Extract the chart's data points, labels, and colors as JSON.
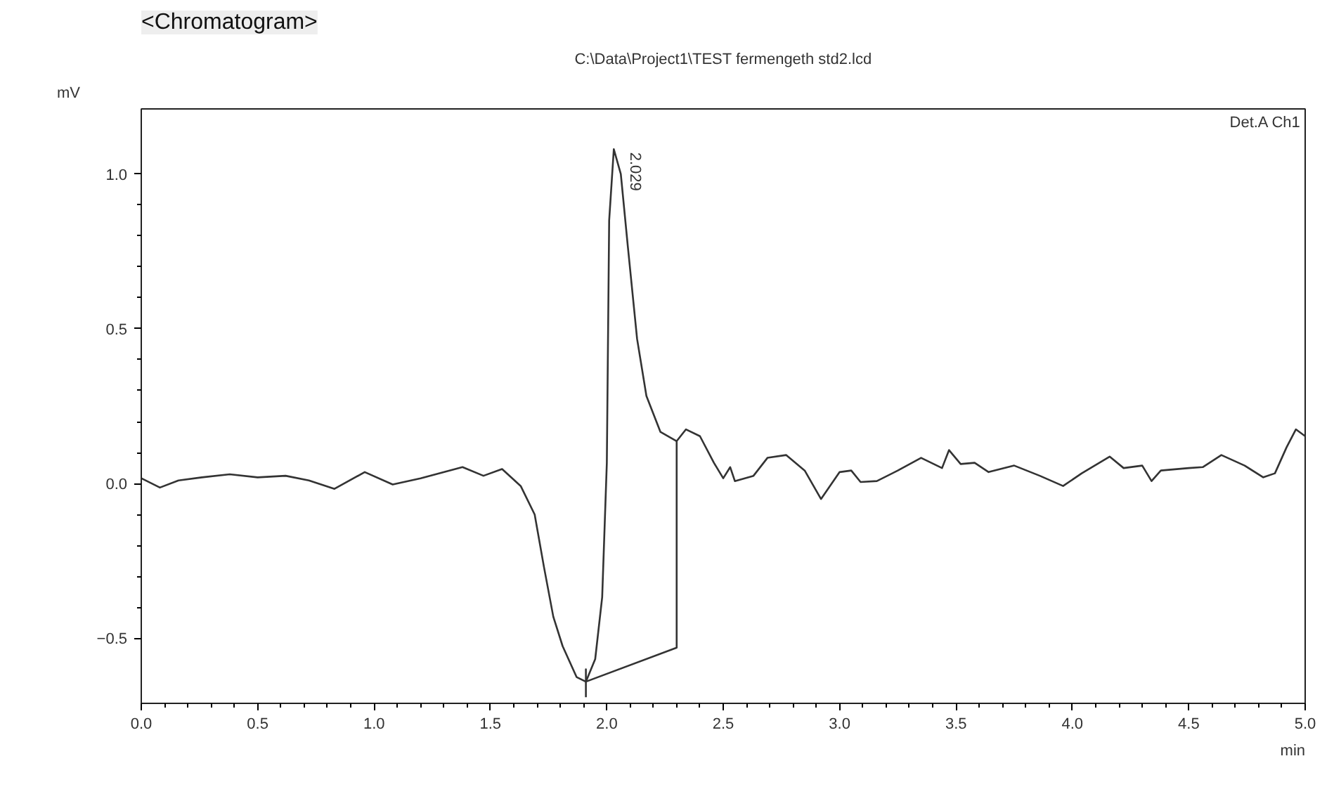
{
  "chart_data": {
    "type": "line",
    "title": "<Chromatogram>",
    "subtitle": "C:\\Data\\Project1\\TEST fermengeth std2.lcd",
    "xlabel": "min",
    "ylabel": "mV",
    "annotations": [
      "Det.A Ch1",
      {
        "text": "2.029",
        "x": 2.029,
        "y": 1.07
      }
    ],
    "xlim": [
      0,
      5.0
    ],
    "xticks": [
      {
        "value": 0,
        "label": "0.0"
      },
      0.5,
      {
        "value": 1,
        "label": "1.0"
      },
      1.5,
      {
        "value": 2,
        "label": "2.0"
      },
      2.5,
      {
        "value": 3,
        "label": "3.0"
      },
      3.5,
      {
        "value": 4,
        "label": "4.0"
      },
      4.5,
      {
        "value": 5,
        "label": "5.0"
      }
    ],
    "ylim": [
      -0.71,
      1.21
    ],
    "yticks": [
      -0.5,
      {
        "value": 0,
        "label": "0.0"
      },
      0.5,
      {
        "value": 1,
        "label": "1.0"
      }
    ],
    "series": [
      {
        "color": "#333333",
        "x": [
          0,
          0.08,
          0.16,
          0.26,
          0.38,
          0.5,
          0.62,
          0.72,
          0.83,
          0.96,
          1.08,
          1.2,
          1.38,
          1.47,
          1.55,
          1.63,
          1.69,
          1.73,
          1.77,
          1.81,
          1.87,
          1.91,
          1.95,
          1.98,
          2.0,
          2.01,
          2.03,
          2.06,
          2.09,
          2.13,
          2.17,
          2.23,
          2.3,
          2.34,
          2.4,
          2.46,
          2.5,
          2.53,
          2.55,
          2.63,
          2.69,
          2.77,
          2.85,
          2.92,
          3.0,
          3.05,
          3.09,
          3.16,
          3.25,
          3.35,
          3.44,
          3.47,
          3.52,
          3.58,
          3.64,
          3.75,
          3.86,
          3.96,
          4.04,
          4.16,
          4.22,
          4.3,
          4.34,
          4.38,
          4.5,
          4.56,
          4.64,
          4.74,
          4.82,
          4.87,
          4.92,
          4.96,
          5.0
        ],
        "values": [
          0.017,
          -0.013,
          0.01,
          0.02,
          0.03,
          0.02,
          0.025,
          0.01,
          -0.017,
          0.037,
          -0.003,
          0.017,
          0.053,
          0.025,
          0.047,
          -0.008,
          -0.1,
          -0.27,
          -0.43,
          -0.525,
          -0.625,
          -0.64,
          -0.567,
          -0.367,
          0.067,
          0.85,
          1.08,
          1.0,
          0.767,
          0.467,
          0.283,
          0.167,
          0.137,
          0.175,
          0.153,
          0.067,
          0.017,
          0.053,
          0.008,
          0.025,
          0.083,
          0.092,
          0.042,
          -0.05,
          0.037,
          0.042,
          0.005,
          0.008,
          0.042,
          0.083,
          0.05,
          0.108,
          0.063,
          0.067,
          0.037,
          0.058,
          0.025,
          -0.008,
          0.033,
          0.087,
          0.05,
          0.058,
          0.008,
          0.042,
          0.05,
          0.053,
          0.092,
          0.058,
          0.02,
          0.033,
          0.117,
          0.175,
          0.153
        ]
      },
      {
        "color": "#333333",
        "x": [
          1.91,
          1.91,
          1.91,
          2.3,
          2.3
        ],
        "values": [
          -0.69,
          -0.6,
          -0.64,
          -0.53,
          0.137
        ]
      }
    ]
  }
}
